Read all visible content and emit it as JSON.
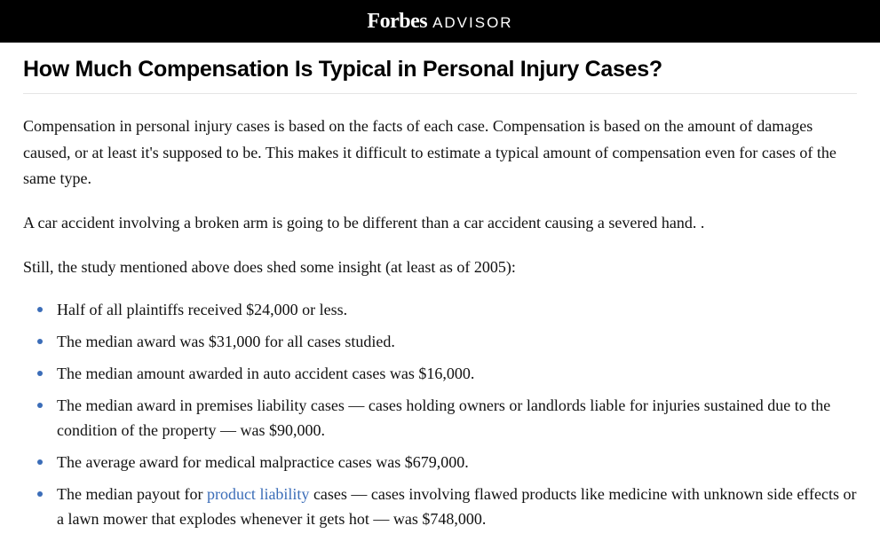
{
  "header": {
    "brand_main": "Forbes",
    "brand_sub": "ADVISOR"
  },
  "article": {
    "heading": "How Much Compensation Is Typical in Personal Injury Cases?",
    "paragraphs": [
      "Compensation in personal injury cases is based on the facts of each case. Compensation is based on the amount of damages caused, or at least it's supposed to be. This makes it difficult to estimate a typical amount of compensation even for cases of the same type.",
      "A car accident involving a broken arm is going to be different than a car accident causing a severed hand. .",
      "Still, the study mentioned above does shed some insight (at least as of 2005):"
    ],
    "bullets": [
      "Half of all plaintiffs received $24,000 or less.",
      "The median award was $31,000 for all cases studied.",
      "The median amount awarded in auto accident cases was $16,000.",
      "The median award in premises liability cases — cases holding owners or landlords liable for injuries sustained due to the condition of the property — was $90,000.",
      "The average award for medical malpractice cases was $679,000."
    ],
    "bullet_with_link": {
      "before": "The median payout for ",
      "link_text": "product liability",
      "after": " cases — cases involving flawed products like medicine with unknown side effects or a lawn mower that explodes whenever it gets hot — was $748,000."
    }
  },
  "colors": {
    "bullet": "#3b6db8",
    "link": "#3b6db8",
    "header_bg": "#000000",
    "text": "#111111",
    "divider": "#e5e5e5"
  }
}
